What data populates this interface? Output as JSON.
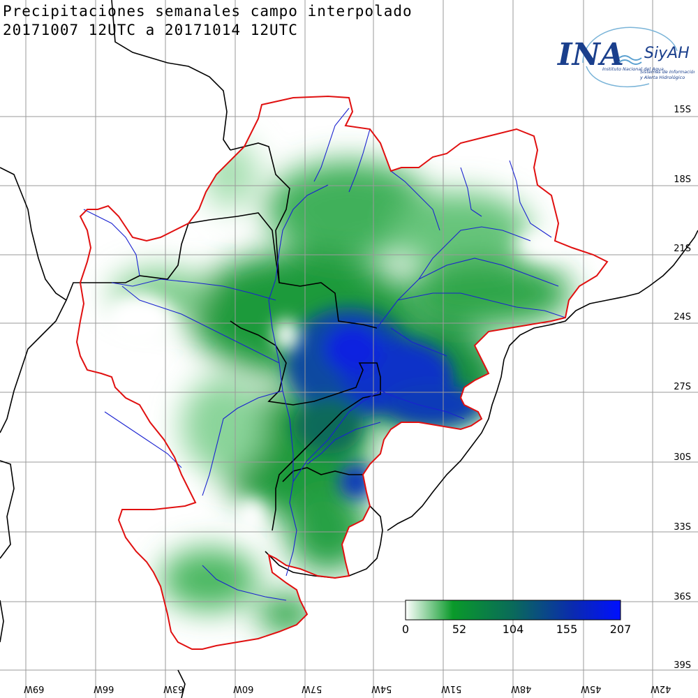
{
  "title": {
    "line1": "Precipitaciones semanales campo interpolado",
    "line2": "20171007 12UTC a 20171014 12UTC"
  },
  "logo": {
    "name": "INA",
    "name_secondary": "SiyAH",
    "org_text": "Instituto Nacional del Agua",
    "system_text_1": "Sistemas de Información",
    "system_text_2": "y Alerta Hidrológico"
  },
  "latitude_labels": [
    "15S",
    "18S",
    "21S",
    "24S",
    "27S",
    "30S",
    "33S",
    "36S",
    "39S"
  ],
  "longitude_labels": [
    "69W",
    "66W",
    "63W",
    "60W",
    "57W",
    "54W",
    "51W",
    "48W",
    "45W",
    "42W"
  ],
  "colorbar": {
    "ticks": [
      "0",
      "52",
      "104",
      "155",
      "207"
    ],
    "colors": [
      "#ffffff",
      "#0a9a2a",
      "#0a6a5a",
      "#0a2ab0",
      "#0010ff"
    ]
  },
  "colors": {
    "basin_outline": "#e01010",
    "rivers": "#1a22d0",
    "borders": "#000000",
    "grid": "#9a9a9a"
  }
}
